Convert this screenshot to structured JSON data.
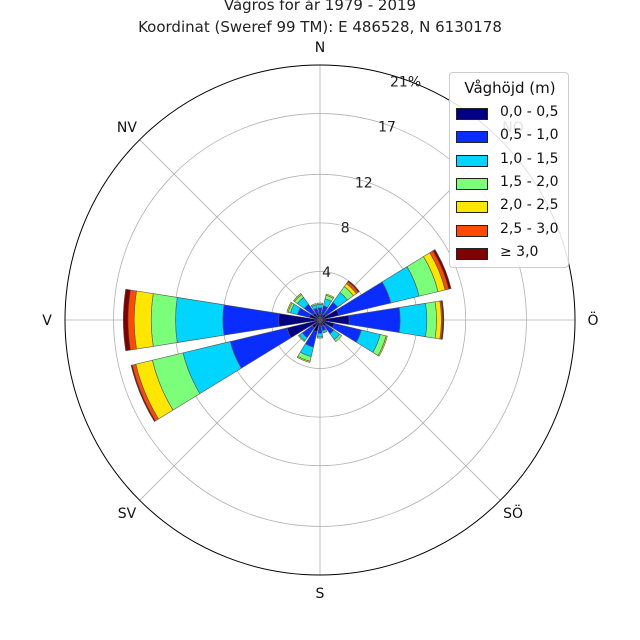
{
  "title": "Vågros för år 1979 - 2019",
  "subtitle": "Koordinat (Sweref 99 TM): E 486528, N 6130178",
  "chart_data": {
    "type": "windrose",
    "unit": "%",
    "direction_labels": [
      "N",
      "NO",
      "Ö",
      "SÖ",
      "S",
      "SV",
      "V",
      "NV"
    ],
    "radial_ticks": [
      4,
      8,
      12,
      17,
      21
    ],
    "radial_tick_labels": [
      "4",
      "8",
      "12",
      "17",
      "21%"
    ],
    "rmax": 21,
    "legend_title": "Våghöjd (m)",
    "legend_placement": "top-right",
    "bins": [
      {
        "label": "0,0 - 0,5",
        "color": "#000080"
      },
      {
        "label": "0,5 - 1,0",
        "color": "#0a2dff"
      },
      {
        "label": "1,0 - 1,5",
        "color": "#00d5ff"
      },
      {
        "label": "1,5 - 2,0",
        "color": "#7bff7b"
      },
      {
        "label": "2,0 - 2,5",
        "color": "#ffe600"
      },
      {
        "label": "2,5 - 3,0",
        "color": "#ff4a00"
      },
      {
        "label": "≥ 3,0",
        "color": "#800000"
      }
    ],
    "directions": [
      0,
      22.5,
      45,
      67.5,
      90,
      112.5,
      135,
      157.5,
      180,
      202.5,
      225,
      247.5,
      270,
      292.5,
      315,
      337.5
    ],
    "values": [
      [
        0.4,
        0.6,
        0.3,
        0.1,
        0.0,
        0.0,
        0.0
      ],
      [
        0.5,
        0.7,
        0.6,
        0.3,
        0.1,
        0.0,
        0.0
      ],
      [
        0.6,
        1.2,
        1.0,
        0.6,
        0.3,
        0.2,
        0.1
      ],
      [
        1.6,
        4.4,
        2.4,
        1.6,
        0.6,
        0.3,
        0.2
      ],
      [
        2.4,
        4.2,
        2.2,
        0.8,
        0.4,
        0.1,
        0.1
      ],
      [
        1.2,
        2.3,
        1.6,
        0.5,
        0.1,
        0.0,
        0.0
      ],
      [
        0.6,
        0.8,
        0.6,
        0.2,
        0.0,
        0.0,
        0.0
      ],
      [
        0.5,
        0.4,
        0.2,
        0.0,
        0.0,
        0.0,
        0.0
      ],
      [
        0.5,
        0.6,
        0.3,
        0.1,
        0.0,
        0.0,
        0.0
      ],
      [
        1.0,
        1.3,
        0.8,
        0.4,
        0.1,
        0.0,
        0.0
      ],
      [
        0.8,
        1.0,
        0.3,
        0.1,
        0.0,
        0.0,
        0.0
      ],
      [
        2.8,
        4.8,
        4.0,
        2.6,
        1.4,
        0.3,
        0.1
      ],
      [
        3.4,
        4.6,
        3.9,
        2.0,
        1.4,
        0.5,
        0.4
      ],
      [
        0.9,
        1.0,
        0.6,
        0.2,
        0.1,
        0.0,
        0.0
      ],
      [
        0.7,
        0.9,
        0.7,
        0.3,
        0.1,
        0.0,
        0.0
      ],
      [
        0.6,
        0.4,
        0.3,
        0.1,
        0.0,
        0.0,
        0.0
      ]
    ],
    "grid": true
  }
}
